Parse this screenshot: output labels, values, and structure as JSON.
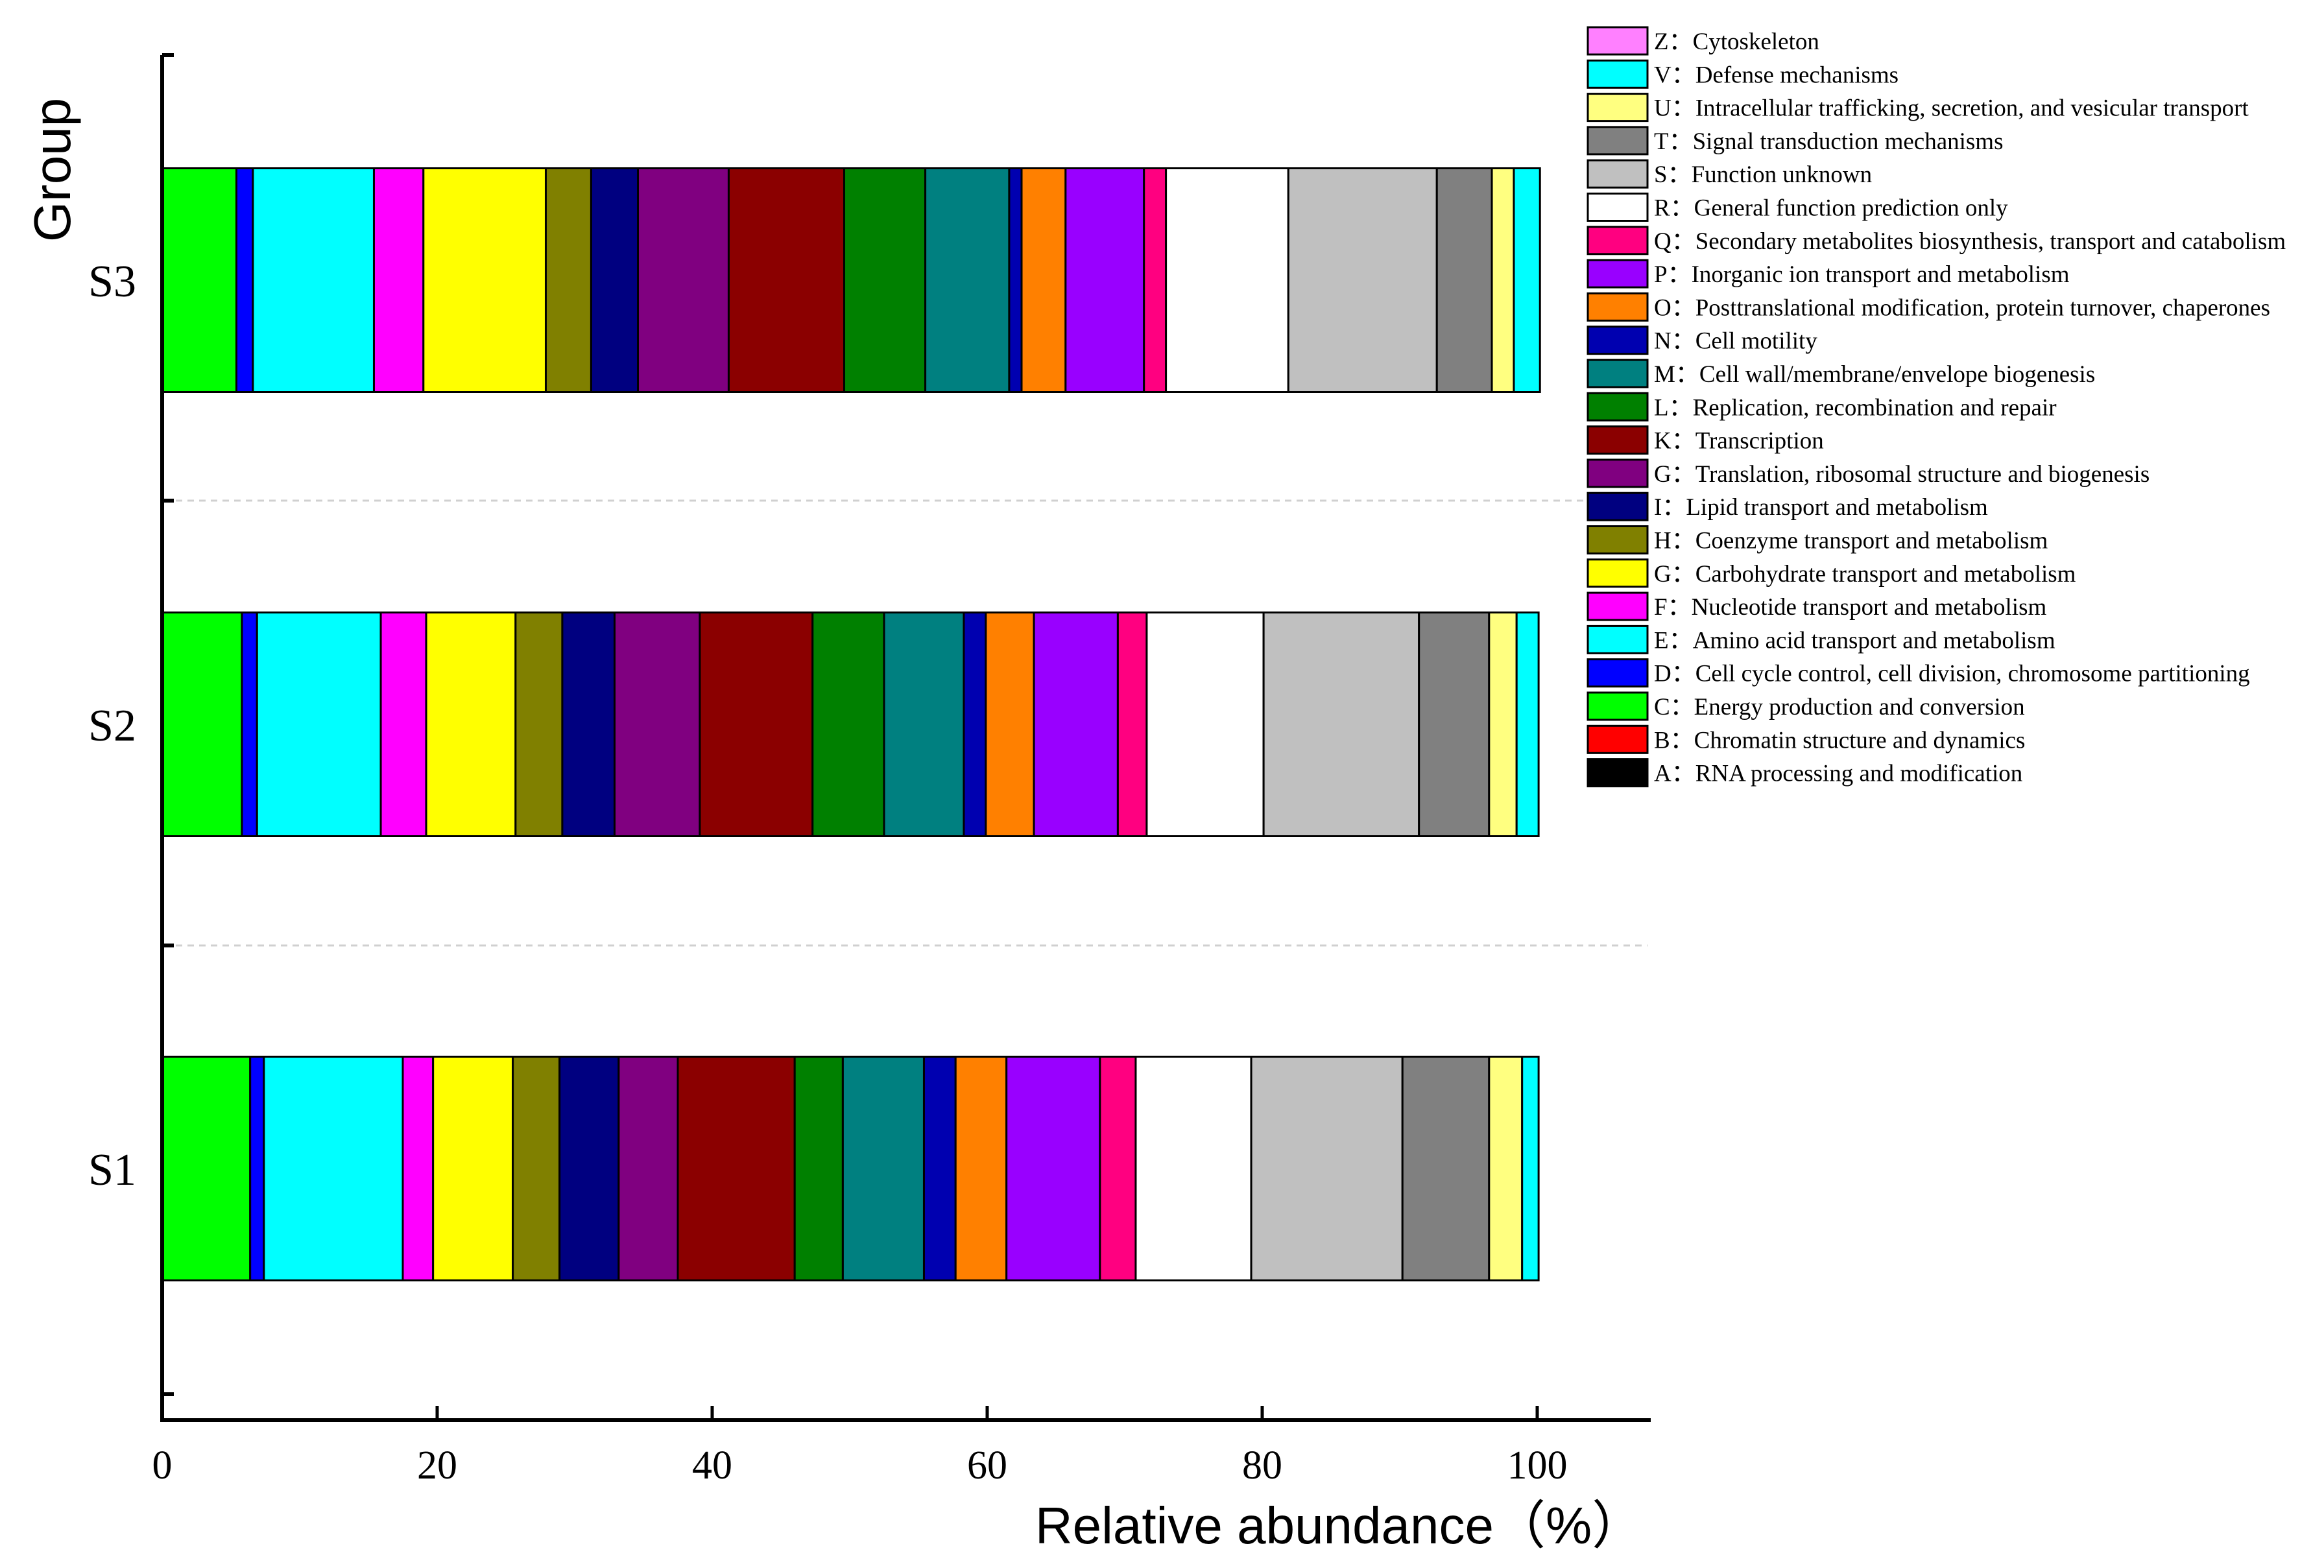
{
  "chart_data": {
    "type": "bar",
    "orientation": "horizontal",
    "stacked": true,
    "xlabel": "Relative abundance（%）",
    "ylabel": "Group",
    "xlim": [
      0,
      100
    ],
    "x_ticks": [
      "0",
      "20",
      "40",
      "60",
      "80",
      "100"
    ],
    "categories": [
      "S1",
      "S2",
      "S3"
    ],
    "grid": "dashed lines between groups",
    "legend_position": "top-right",
    "series": [
      {
        "name": "A：RNA processing and modification",
        "color": "#000000",
        "values": [
          0,
          0,
          0
        ]
      },
      {
        "name": "B：Chromatin structure and dynamics",
        "color": "#ff0000",
        "values": [
          0,
          0,
          0
        ]
      },
      {
        "name": "C：Energy production and conversion",
        "color": "#00ff00",
        "values": [
          6.4,
          5.8,
          5.4
        ]
      },
      {
        "name": "D：Cell cycle control, cell division, chromosome partitioning",
        "color": "#0000ff",
        "values": [
          1.0,
          1.1,
          1.2
        ]
      },
      {
        "name": "E：Amino acid transport and metabolism",
        "color": "#00ffff",
        "values": [
          10.1,
          9.0,
          8.8
        ]
      },
      {
        "name": "F：Nucleotide transport and metabolism",
        "color": "#ff00ff",
        "values": [
          2.2,
          3.3,
          3.6
        ]
      },
      {
        "name": "G：Carbohydrate transport and metabolism",
        "color": "#ffff00",
        "values": [
          5.8,
          6.5,
          8.9
        ]
      },
      {
        "name": "H：Coenzyme transport and metabolism",
        "color": "#808000",
        "values": [
          3.4,
          3.4,
          3.3
        ]
      },
      {
        "name": "I：Lipid transport and metabolism",
        "color": "#000080",
        "values": [
          4.3,
          3.8,
          3.4
        ]
      },
      {
        "name": "G：Translation, ribosomal structure and biogenesis",
        "color": "#800080",
        "values": [
          4.3,
          6.2,
          6.6
        ]
      },
      {
        "name": "K：Transcription",
        "color": "#8b0000",
        "values": [
          8.5,
          8.2,
          8.4
        ]
      },
      {
        "name": "L：Replication, recombination and repair",
        "color": "#008000",
        "values": [
          3.5,
          5.2,
          5.9
        ]
      },
      {
        "name": "M：Cell wall/membrane/envelope biogenesis",
        "color": "#008080",
        "values": [
          5.9,
          5.8,
          6.1
        ]
      },
      {
        "name": "N：Cell motility",
        "color": "#0000b0",
        "values": [
          2.3,
          1.6,
          0.9
        ]
      },
      {
        "name": "O：Posttranslational modification, protein turnover, chaperones",
        "color": "#ff8000",
        "values": [
          3.7,
          3.5,
          3.2
        ]
      },
      {
        "name": "P：Inorganic ion transport and metabolism",
        "color": "#9900ff",
        "values": [
          6.8,
          6.1,
          5.7
        ]
      },
      {
        "name": "Q：Secondary metabolites biosynthesis, transport and catabolism",
        "color": "#ff0080",
        "values": [
          2.6,
          2.1,
          1.6
        ]
      },
      {
        "name": "R：General function prediction only",
        "color": "#ffffff",
        "values": [
          8.4,
          8.5,
          8.9
        ]
      },
      {
        "name": "S：Function unknown",
        "color": "#c0c0c0",
        "values": [
          11.0,
          11.3,
          10.8
        ]
      },
      {
        "name": "T：Signal transduction mechanisms",
        "color": "#808080",
        "values": [
          6.3,
          5.1,
          4.0
        ]
      },
      {
        "name": "U：Intracellular trafficking, secretion, and vesicular transport",
        "color": "#ffff80",
        "values": [
          2.4,
          2.0,
          1.6
        ]
      },
      {
        "name": "V：Defense mechanisms",
        "color": "#00ffff",
        "values": [
          1.2,
          1.6,
          1.9
        ]
      },
      {
        "name": "Z：Cytoskeleton",
        "color": "#ff80ff",
        "values": [
          0,
          0,
          0
        ]
      }
    ]
  }
}
